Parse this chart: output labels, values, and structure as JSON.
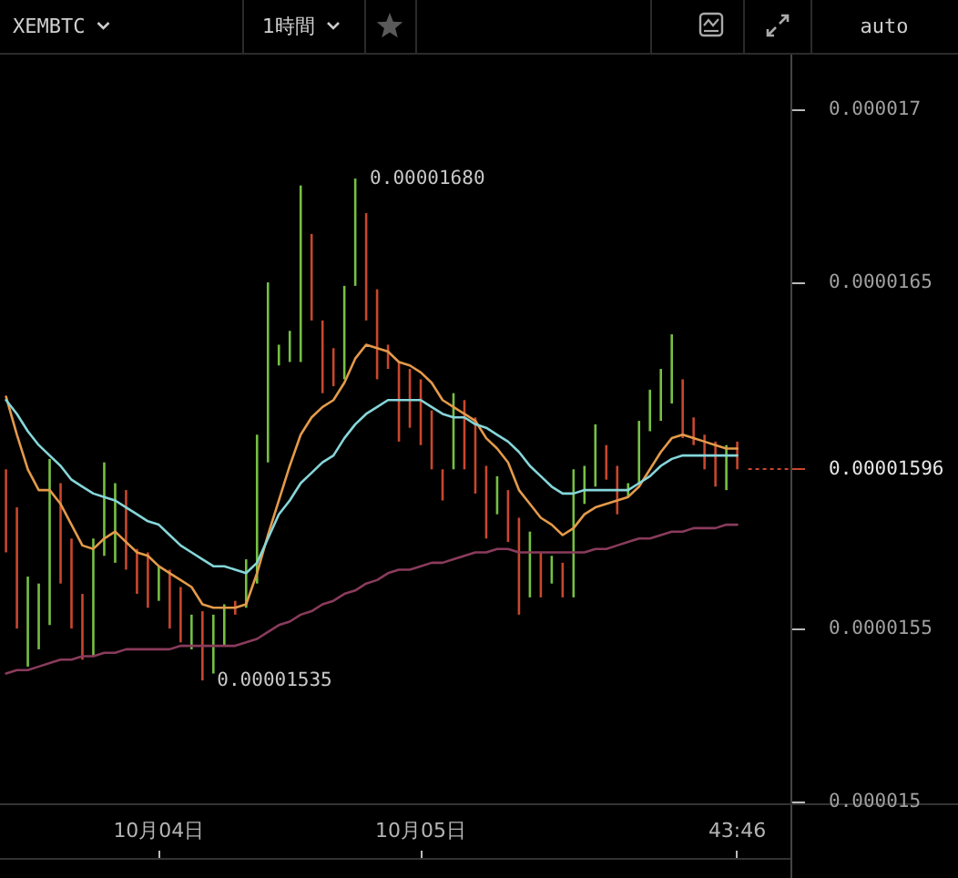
{
  "chart_data": {
    "type": "bar",
    "title": "XEMBTC",
    "subtitle": "1時間",
    "categories": [
      null,
      null,
      null,
      null,
      null,
      null,
      null,
      null,
      null,
      null,
      null,
      null,
      null,
      null,
      "10月04日",
      null,
      null,
      null,
      null,
      null,
      null,
      null,
      null,
      null,
      null,
      null,
      null,
      null,
      null,
      null,
      null,
      null,
      null,
      null,
      null,
      null,
      null,
      null,
      "10月05日",
      null,
      null,
      null,
      null,
      null,
      null,
      null,
      null,
      null,
      null,
      null,
      null,
      null,
      null,
      null,
      null,
      null,
      null,
      null,
      null,
      null,
      null,
      null,
      null,
      null,
      null,
      null,
      null,
      "43:46"
    ],
    "ylim": [
      1.4995e-05,
      1.7158e-05
    ],
    "yticks": [
      {
        "value": 1.5e-05,
        "label": "0.000015"
      },
      {
        "value": 1.55e-05,
        "label": "0.0000155"
      },
      {
        "value": 1.65e-05,
        "label": "0.0000165"
      },
      {
        "value": 1.7e-05,
        "label": "0.000017"
      }
    ],
    "series": [
      {
        "colors": [
          "#c8472d",
          "#c8472d",
          "#76c043",
          "#76c043",
          "#76c043",
          "#c8472d",
          "#c8472d",
          "#c8472d",
          "#76c043",
          "#76c043",
          "#76c043",
          "#c8472d",
          "#c8472d",
          "#c8472d",
          "#76c043",
          "#c8472d",
          "#c8472d",
          "#76c043",
          "#c8472d",
          "#76c043",
          "#76c043",
          "#c8472d",
          "#76c043",
          "#76c043",
          "#76c043",
          "#76c043",
          "#76c043",
          "#76c043",
          "#c8472d",
          "#c8472d",
          "#c8472d",
          "#76c043",
          "#76c043",
          "#c8472d",
          "#c8472d",
          "#c8472d",
          "#c8472d",
          "#c8472d",
          "#c8472d",
          "#c8472d",
          "#c8472d",
          "#76c043",
          "#c8472d",
          "#c8472d",
          "#c8472d",
          "#76c043",
          "#c8472d",
          "#c8472d",
          "#76c043",
          "#c8472d",
          "#76c043",
          "#c8472d",
          "#76c043",
          "#76c043",
          "#76c043",
          "#c8472d",
          "#c8472d",
          "#76c043",
          "#76c043",
          "#76c043",
          "#76c043",
          "#76c043",
          "#c8472d",
          "#c8472d",
          "#c8472d",
          "#c8472d",
          "#76c043",
          "#c8472d"
        ],
        "base": [
          1.572e-05,
          1.55e-05,
          1.539e-05,
          1.544e-05,
          1.551e-05,
          1.563e-05,
          1.55e-05,
          1.541e-05,
          1.542e-05,
          1.571e-05,
          1.569e-05,
          1.567e-05,
          1.56e-05,
          1.556e-05,
          1.558e-05,
          1.55e-05,
          1.546e-05,
          1.544e-05,
          1.535e-05,
          1.537e-05,
          1.545e-05,
          1.554e-05,
          1.556e-05,
          1.563e-05,
          1.598e-05,
          1.626e-05,
          1.627e-05,
          1.627e-05,
          1.639e-05,
          1.618e-05,
          1.62e-05,
          1.622e-05,
          1.649e-05,
          1.639e-05,
          1.622e-05,
          1.625e-05,
          1.604e-05,
          1.608e-05,
          1.603e-05,
          1.596e-05,
          1.587e-05,
          1.596e-05,
          1.596e-05,
          1.589e-05,
          1.576e-05,
          1.583e-05,
          1.575e-05,
          1.554e-05,
          1.559e-05,
          1.559e-05,
          1.563e-05,
          1.559e-05,
          1.559e-05,
          1.586e-05,
          1.591e-05,
          1.593e-05,
          1.583e-05,
          1.588e-05,
          1.592e-05,
          1.607e-05,
          1.61e-05,
          1.615e-05,
          1.605e-05,
          1.603e-05,
          1.596e-05,
          1.591e-05,
          1.59e-05,
          1.596e-05
        ],
        "values": [
          2.4e-07,
          3.5e-07,
          2.6e-07,
          1.9e-07,
          4.8e-07,
          2.9e-07,
          2.6e-07,
          1.9e-07,
          3.4e-07,
          2.7e-07,
          2.3e-07,
          2.3e-07,
          1.3e-07,
          1.6e-07,
          1e-07,
          1.7e-07,
          1.6e-07,
          1e-07,
          2e-07,
          1.7e-07,
          1.2e-07,
          4e-08,
          1.4e-07,
          4.3e-07,
          5.2e-07,
          6e-08,
          9e-08,
          5.1e-07,
          2.5e-07,
          2.1e-07,
          1.1e-07,
          2.7e-07,
          3.1e-07,
          3.1e-07,
          2.6e-07,
          7e-08,
          2.3e-07,
          1.7e-07,
          1.9e-07,
          1.7e-07,
          9e-08,
          2.2e-07,
          2e-07,
          2.2e-07,
          2.1e-07,
          1.1e-07,
          1.5e-07,
          2.8e-07,
          1.9e-07,
          1.3e-07,
          8e-08,
          1e-07,
          3.7e-07,
          1.1e-07,
          1.8e-07,
          1e-07,
          1.4e-07,
          4e-08,
          1.8e-07,
          1.2e-07,
          1.5e-07,
          2e-07,
          1.7e-07,
          8e-08,
          1e-07,
          1.3e-07,
          1.3e-07,
          8e-08
        ]
      },
      {
        "type": "line",
        "color": "#e39a4a",
        "values": [
          1.617e-05,
          1.606e-05,
          1.596e-05,
          1.59e-05,
          1.59e-05,
          1.586e-05,
          1.58e-05,
          1.574e-05,
          1.573e-05,
          1.576e-05,
          1.578e-05,
          1.575e-05,
          1.572e-05,
          1.571e-05,
          1.568e-05,
          1.566e-05,
          1.564e-05,
          1.562e-05,
          1.557e-05,
          1.556e-05,
          1.556e-05,
          1.556e-05,
          1.557e-05,
          1.566e-05,
          1.577e-05,
          1.587e-05,
          1.597e-05,
          1.606e-05,
          1.611e-05,
          1.614e-05,
          1.616e-05,
          1.621e-05,
          1.628e-05,
          1.632e-05,
          1.631e-05,
          1.63e-05,
          1.627e-05,
          1.626e-05,
          1.624e-05,
          1.621e-05,
          1.616e-05,
          1.614e-05,
          1.612e-05,
          1.61e-05,
          1.605e-05,
          1.602e-05,
          1.598e-05,
          1.59e-05,
          1.586e-05,
          1.582e-05,
          1.58e-05,
          1.577e-05,
          1.579e-05,
          1.583e-05,
          1.585e-05,
          1.586e-05,
          1.587e-05,
          1.588e-05,
          1.591e-05,
          1.596e-05,
          1.601e-05,
          1.605e-05,
          1.606e-05,
          1.605e-05,
          1.604e-05,
          1.603e-05,
          1.602e-05,
          1.602e-05
        ]
      },
      {
        "type": "line",
        "color": "#86d6da",
        "values": [
          1.616e-05,
          1.612e-05,
          1.607e-05,
          1.603e-05,
          1.6e-05,
          1.597e-05,
          1.593e-05,
          1.591e-05,
          1.589e-05,
          1.588e-05,
          1.587e-05,
          1.585e-05,
          1.583e-05,
          1.581e-05,
          1.58e-05,
          1.577e-05,
          1.574e-05,
          1.572e-05,
          1.57e-05,
          1.568e-05,
          1.568e-05,
          1.567e-05,
          1.566e-05,
          1.569e-05,
          1.576e-05,
          1.583e-05,
          1.587e-05,
          1.592e-05,
          1.595e-05,
          1.598e-05,
          1.6e-05,
          1.605e-05,
          1.609e-05,
          1.612e-05,
          1.614e-05,
          1.616e-05,
          1.616e-05,
          1.616e-05,
          1.616e-05,
          1.614e-05,
          1.612e-05,
          1.611e-05,
          1.611e-05,
          1.609e-05,
          1.608e-05,
          1.606e-05,
          1.604e-05,
          1.601e-05,
          1.597e-05,
          1.594e-05,
          1.591e-05,
          1.589e-05,
          1.589e-05,
          1.59e-05,
          1.59e-05,
          1.59e-05,
          1.59e-05,
          1.59e-05,
          1.592e-05,
          1.594e-05,
          1.597e-05,
          1.599e-05,
          1.6e-05,
          1.6e-05,
          1.6e-05,
          1.6e-05,
          1.6e-05,
          1.6e-05
        ]
      },
      {
        "type": "line",
        "color": "#8a3b5c",
        "values": [
          1.537e-05,
          1.538e-05,
          1.538e-05,
          1.539e-05,
          1.54e-05,
          1.541e-05,
          1.541e-05,
          1.542e-05,
          1.542e-05,
          1.543e-05,
          1.543e-05,
          1.544e-05,
          1.544e-05,
          1.544e-05,
          1.544e-05,
          1.544e-05,
          1.545e-05,
          1.545e-05,
          1.545e-05,
          1.545e-05,
          1.545e-05,
          1.545e-05,
          1.546e-05,
          1.547e-05,
          1.549e-05,
          1.551e-05,
          1.552e-05,
          1.554e-05,
          1.555e-05,
          1.557e-05,
          1.558e-05,
          1.56e-05,
          1.561e-05,
          1.563e-05,
          1.564e-05,
          1.566e-05,
          1.567e-05,
          1.567e-05,
          1.568e-05,
          1.569e-05,
          1.569e-05,
          1.57e-05,
          1.571e-05,
          1.572e-05,
          1.572e-05,
          1.573e-05,
          1.573e-05,
          1.572e-05,
          1.572e-05,
          1.572e-05,
          1.572e-05,
          1.572e-05,
          1.572e-05,
          1.572e-05,
          1.573e-05,
          1.573e-05,
          1.574e-05,
          1.575e-05,
          1.576e-05,
          1.576e-05,
          1.577e-05,
          1.578e-05,
          1.578e-05,
          1.579e-05,
          1.579e-05,
          1.579e-05,
          1.58e-05,
          1.58e-05
        ]
      }
    ],
    "annotations": [
      "auto",
      "0.00001680",
      "0.00001535",
      "0.00001596"
    ]
  }
}
